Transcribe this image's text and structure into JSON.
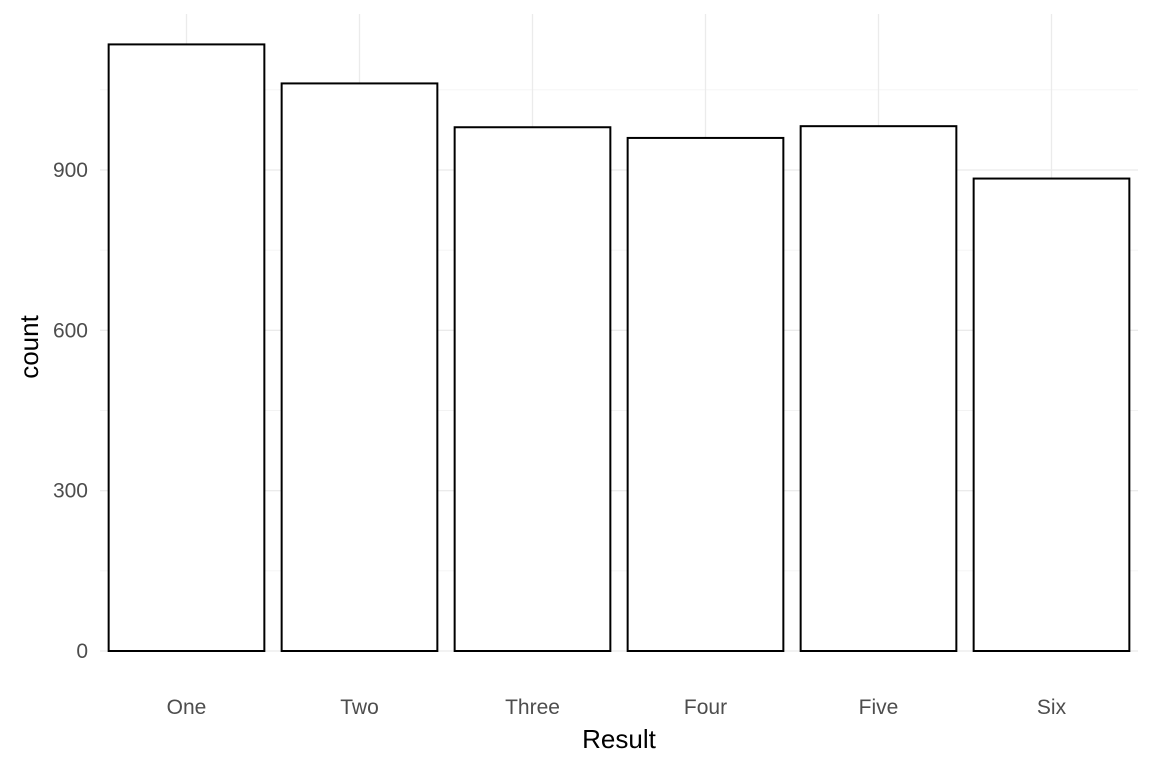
{
  "chart_data": {
    "type": "bar",
    "title": "",
    "xlabel": "Result",
    "ylabel": "count",
    "categories": [
      "One",
      "Two",
      "Three",
      "Four",
      "Five",
      "Six"
    ],
    "values": [
      1135,
      1062,
      980,
      960,
      982,
      884
    ],
    "ylim": [
      0,
      1200
    ],
    "yticks": [
      0,
      300,
      600,
      900
    ],
    "grid": true,
    "legend": "none",
    "bar_fill": "#ffffff",
    "bar_outline": "#000000"
  }
}
